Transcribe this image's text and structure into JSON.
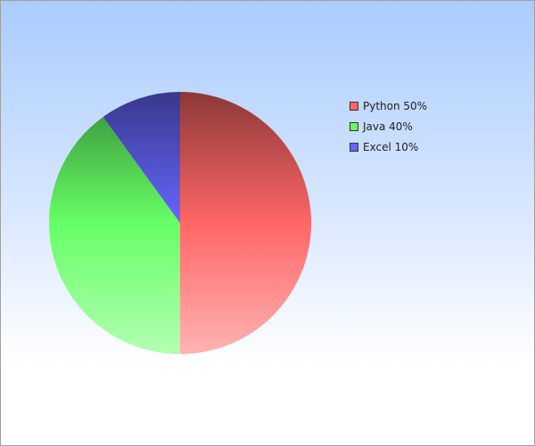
{
  "chart_data": {
    "type": "pie",
    "title": "",
    "slices": [
      {
        "label": "Python",
        "value": 50,
        "legend": "Python 50%",
        "color": "#ff6666"
      },
      {
        "label": "Java",
        "value": 40,
        "legend": "Java 40%",
        "color": "#66ff66"
      },
      {
        "label": "Excel",
        "value": 10,
        "legend": "Excel 10%",
        "color": "#6666ff"
      }
    ],
    "legend_position": "top-right"
  }
}
